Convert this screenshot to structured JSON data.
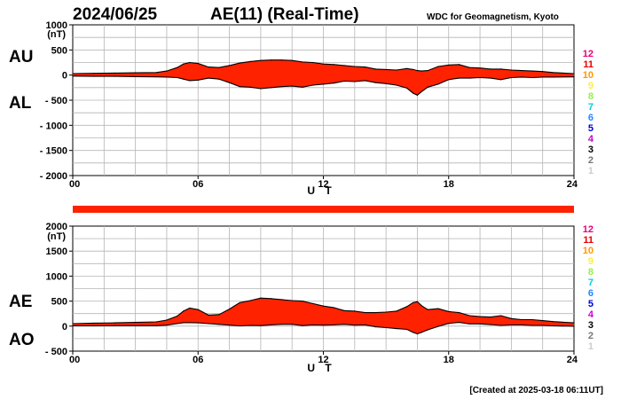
{
  "header": {
    "date": "2024/06/25",
    "title": "AE(11) (Real-Time)",
    "source": "WDC for Geomagnetism, Kyoto"
  },
  "footer": {
    "created": "[Created at 2025-03-18 06:11UT]"
  },
  "legend": {
    "labels": [
      "12",
      "11",
      "10",
      "9",
      "8",
      "7",
      "6",
      "5",
      "4",
      "3",
      "2",
      "1"
    ],
    "colors": [
      "#e6007e",
      "#e60000",
      "#ff9900",
      "#ffee33",
      "#99ee44",
      "#00ccdd",
      "#2288ff",
      "#0000cc",
      "#cc00cc",
      "#000000",
      "#777777",
      "#cccccc"
    ]
  },
  "top_panel": {
    "unit": "(nT)",
    "y_ticks": [
      "1000",
      "500",
      "0",
      "- 500",
      "- 1000",
      "- 1500",
      "- 2000"
    ],
    "x_ticks": [
      "00",
      "06",
      "12",
      "18",
      "24"
    ],
    "xlabel": "U T",
    "upper_label": "AU",
    "lower_label": "AL",
    "stroke_color": "#000000",
    "fill_color": "#ff2200"
  },
  "bottom_panel": {
    "unit": "(nT)",
    "y_ticks": [
      "2000",
      "1500",
      "1000",
      "500",
      "0",
      "- 500"
    ],
    "x_ticks": [
      "00",
      "06",
      "12",
      "18",
      "24"
    ],
    "xlabel": "U T",
    "upper_label": "AE",
    "lower_label": "AO",
    "stroke_color": "#000000",
    "fill_color": "#ff2200"
  },
  "chart_data": [
    {
      "type": "area",
      "name_upper": "AU",
      "name_lower": "AL",
      "xlabel": "U T",
      "ylabel": "(nT)",
      "xlim": [
        0,
        24
      ],
      "ylim": [
        -2000,
        1000
      ],
      "x": [
        0,
        1,
        2,
        3,
        4,
        4.5,
        5,
        5.3,
        5.6,
        6,
        6.5,
        7,
        7.5,
        8,
        8.5,
        9,
        9.5,
        10,
        10.5,
        11,
        11.5,
        12,
        12.5,
        13,
        13.5,
        14,
        14.5,
        15,
        15.5,
        16,
        16.3,
        16.5,
        16.7,
        17,
        17.5,
        18,
        18.5,
        19,
        19.5,
        20,
        20.5,
        21,
        21.5,
        22,
        22.5,
        23,
        24
      ],
      "upper": [
        30,
        35,
        40,
        45,
        50,
        80,
        150,
        220,
        250,
        230,
        160,
        150,
        190,
        240,
        270,
        290,
        300,
        300,
        290,
        260,
        250,
        220,
        210,
        190,
        170,
        160,
        120,
        110,
        100,
        130,
        110,
        90,
        80,
        90,
        170,
        200,
        210,
        150,
        140,
        120,
        120,
        100,
        90,
        80,
        70,
        50,
        30
      ],
      "lower": [
        -20,
        -25,
        -25,
        -30,
        -35,
        -40,
        -50,
        -80,
        -110,
        -100,
        -60,
        -80,
        -150,
        -230,
        -240,
        -270,
        -250,
        -230,
        -220,
        -240,
        -200,
        -180,
        -160,
        -120,
        -130,
        -110,
        -150,
        -170,
        -200,
        -260,
        -360,
        -400,
        -330,
        -240,
        -180,
        -90,
        -60,
        -60,
        -50,
        -60,
        -90,
        -50,
        -40,
        -50,
        -40,
        -40,
        -35
      ]
    },
    {
      "type": "area",
      "name_upper": "AE",
      "name_lower": "AO",
      "xlabel": "U T",
      "ylabel": "(nT)",
      "xlim": [
        0,
        24
      ],
      "ylim": [
        -500,
        2000
      ],
      "x": [
        0,
        1,
        2,
        3,
        4,
        4.5,
        5,
        5.3,
        5.6,
        6,
        6.5,
        7,
        7.5,
        8,
        8.5,
        9,
        9.5,
        10,
        10.5,
        11,
        11.5,
        12,
        12.5,
        13,
        13.5,
        14,
        14.5,
        15,
        15.5,
        16,
        16.3,
        16.5,
        16.7,
        17,
        17.5,
        18,
        18.5,
        19,
        19.5,
        20,
        20.5,
        21,
        21.5,
        22,
        22.5,
        23,
        24
      ],
      "upper": [
        50,
        60,
        65,
        75,
        85,
        120,
        200,
        300,
        360,
        330,
        220,
        230,
        340,
        470,
        510,
        560,
        550,
        530,
        510,
        500,
        450,
        400,
        370,
        310,
        300,
        270,
        270,
        280,
        300,
        390,
        470,
        490,
        410,
        330,
        350,
        290,
        270,
        210,
        190,
        180,
        210,
        150,
        130,
        130,
        110,
        90,
        65
      ],
      "lower": [
        5,
        5,
        8,
        8,
        8,
        20,
        50,
        70,
        70,
        65,
        50,
        35,
        20,
        5,
        15,
        10,
        25,
        35,
        35,
        10,
        25,
        20,
        25,
        35,
        20,
        25,
        -15,
        -30,
        -50,
        -65,
        -125,
        -155,
        -125,
        -75,
        -5,
        55,
        75,
        45,
        45,
        30,
        15,
        25,
        25,
        15,
        15,
        5,
        -3
      ]
    }
  ]
}
